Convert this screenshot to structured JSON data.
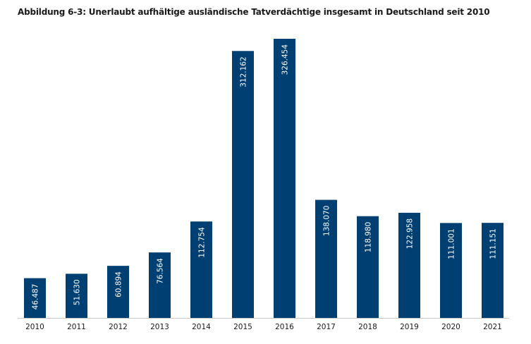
{
  "chart_data": {
    "type": "bar",
    "title": "Abbildung 6-3: Unerlaubt aufhältige ausländische Tatverdächtige insgesamt in Deutschland seit 2010",
    "xlabel": "",
    "ylabel": "",
    "categories": [
      "2010",
      "2011",
      "2012",
      "2013",
      "2014",
      "2015",
      "2016",
      "2017",
      "2018",
      "2019",
      "2020",
      "2021"
    ],
    "values": [
      46487,
      51630,
      60894,
      76564,
      112754,
      312162,
      326454,
      138070,
      118980,
      122958,
      111001,
      111151
    ],
    "data_labels": [
      "46.487",
      "51.630",
      "60.894",
      "76.564",
      "112.754",
      "312.162",
      "326.454",
      "138.070",
      "118.980",
      "122.958",
      "111.001",
      "111.151"
    ],
    "ylim": [
      0,
      326454
    ],
    "grid": false,
    "legend": "none",
    "bar_color": "#003f72",
    "label_color": "#ffffff",
    "data_label_orientation": "vertical"
  }
}
